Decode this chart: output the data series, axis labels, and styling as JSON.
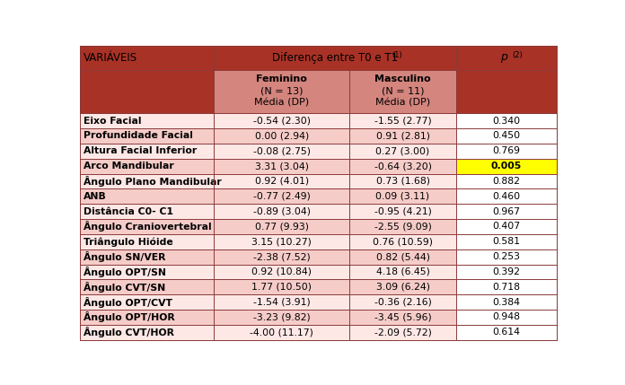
{
  "col1_header": "VARIÁVEIS",
  "diff_header": "Diferença entre T0 e T1",
  "diff_superscript": "(1)",
  "p_label": "p",
  "p_superscript": "(2)",
  "fem_header": "Feminino",
  "fem_n": "(N = 13)",
  "fem_media": "Média (DP)",
  "masc_header": "Masculino",
  "masc_n": "(N = 11)",
  "masc_media": "Média (DP)",
  "dark_red": "#a93226",
  "medium_red": "#d4857e",
  "light_pink1": "#fde8e6",
  "light_pink2": "#f5ccc8",
  "white": "#ffffff",
  "highlight_color": "#ffff00",
  "highlight_row": 3,
  "rows": [
    [
      "Eixo Facial",
      "-0.54 (2.30)",
      "-1.55 (2.77)",
      "0.340"
    ],
    [
      "Profundidade Facial",
      "0.00 (2.94)",
      "0.91 (2.81)",
      "0.450"
    ],
    [
      "Altura Facial Inferior",
      "-0.08 (2.75)",
      "0.27 (3.00)",
      "0.769"
    ],
    [
      "Arco Mandibular",
      "3.31 (3.04)",
      "-0.64 (3.20)",
      "0.005"
    ],
    [
      "Ângulo Plano Mandibular",
      "0.92 (4.01)",
      "0.73 (1.68)",
      "0.882"
    ],
    [
      "ANB",
      "-0.77 (2.49)",
      "0.09 (3.11)",
      "0.460"
    ],
    [
      "Distância C0- C1",
      "-0.89 (3.04)",
      "-0.95 (4.21)",
      "0.967"
    ],
    [
      "Ângulo Craniovertebral",
      "0.77 (9.93)",
      "-2.55 (9.09)",
      "0.407"
    ],
    [
      "Triângulo Hióide",
      "3.15 (10.27)",
      "0.76 (10.59)",
      "0.581"
    ],
    [
      "Ângulo SN/VER",
      "-2.38 (7.52)",
      "0.82 (5.44)",
      "0.253"
    ],
    [
      "Ângulo OPT/SN",
      "0.92 (10.84)",
      "4.18 (6.45)",
      "0.392"
    ],
    [
      "Ângulo CVT/SN",
      "1.77 (10.50)",
      "3.09 (6.24)",
      "0.718"
    ],
    [
      "Ângulo OPT/CVT",
      "-1.54 (3.91)",
      "-0.36 (2.16)",
      "0.384"
    ],
    [
      "Ângulo OPT/HOR",
      "-3.23 (9.82)",
      "-3.45 (5.96)",
      "0.948"
    ],
    [
      "Ângulo CVT/HOR",
      "-4.00 (11.17)",
      "-2.09 (5.72)",
      "0.614"
    ]
  ],
  "figsize": [
    6.96,
    4.29
  ],
  "dpi": 100
}
